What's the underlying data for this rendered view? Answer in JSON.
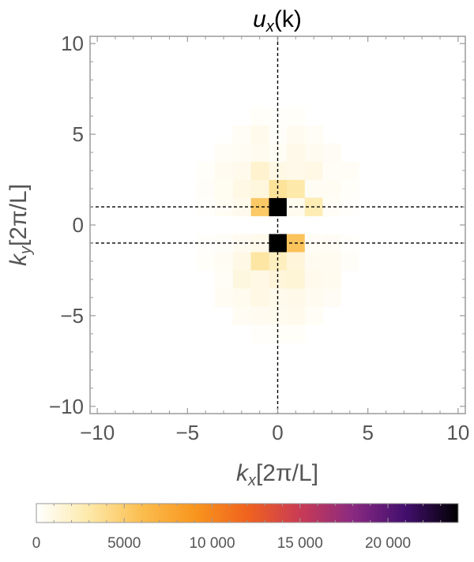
{
  "chart_data": {
    "type": "heatmap",
    "title_main": "u",
    "title_sub": "x",
    "title_tail": "(k)",
    "xlabel": {
      "main": "k",
      "sub": "x",
      "tail": "[2π/L]"
    },
    "ylabel": {
      "main": "k",
      "sub": "y",
      "tail": "[2π/L]"
    },
    "xlim": [
      -10.4,
      10.4
    ],
    "ylim": [
      -10.4,
      10.4
    ],
    "xticks": [
      -10,
      -5,
      0,
      5,
      10
    ],
    "yticks": [
      -10,
      -5,
      0,
      5,
      10
    ],
    "xtick_labels": [
      "−10",
      "−5",
      "0",
      "5",
      "10"
    ],
    "ytick_labels": [
      "−10",
      "−5",
      "0",
      "5",
      "10"
    ],
    "reference_lines": {
      "vertical_x": [
        0
      ],
      "horizontal_y": [
        1,
        -1
      ],
      "style": "dashed"
    },
    "colorbar": {
      "min": 0,
      "max": 24000,
      "ticks": [
        0,
        5000,
        10000,
        15000,
        20000
      ],
      "tick_labels": [
        "0",
        "5000",
        "10 000",
        "15 000",
        "20 000"
      ],
      "colormap": [
        "#ffffff",
        "#fde9a9",
        "#fbbd4f",
        "#f8961e",
        "#f0631e",
        "#c93b55",
        "#8a2a81",
        "#420f6e",
        "#000000"
      ]
    },
    "cells": [
      {
        "kx": 0,
        "ky": 1,
        "value": 24000
      },
      {
        "kx": 0,
        "ky": -1,
        "value": 24000
      },
      {
        "kx": -1,
        "ky": 1,
        "value": 5200
      },
      {
        "kx": 1,
        "ky": -1,
        "value": 5600
      },
      {
        "kx": 1,
        "ky": 1,
        "value": 600
      },
      {
        "kx": -1,
        "ky": -1,
        "value": 700
      },
      {
        "kx": 0,
        "ky": 2,
        "value": 3500
      },
      {
        "kx": 1,
        "ky": 2,
        "value": 3000
      },
      {
        "kx": -1,
        "ky": 2,
        "value": 1200
      },
      {
        "kx": 2,
        "ky": 2,
        "value": 400
      },
      {
        "kx": -2,
        "ky": 2,
        "value": 900
      },
      {
        "kx": 0,
        "ky": -2,
        "value": 2200
      },
      {
        "kx": -1,
        "ky": -2,
        "value": 3200
      },
      {
        "kx": 1,
        "ky": -2,
        "value": 1300
      },
      {
        "kx": 2,
        "ky": -2,
        "value": 500
      },
      {
        "kx": -2,
        "ky": -2,
        "value": 900
      },
      {
        "kx": 2,
        "ky": 1,
        "value": 2600
      },
      {
        "kx": -2,
        "ky": 1,
        "value": 700
      },
      {
        "kx": 2,
        "ky": -1,
        "value": 300
      },
      {
        "kx": -2,
        "ky": -1,
        "value": 500
      },
      {
        "kx": 3,
        "ky": 1,
        "value": 300
      },
      {
        "kx": -3,
        "ky": 1,
        "value": 400
      },
      {
        "kx": 3,
        "ky": -1,
        "value": 350
      },
      {
        "kx": -3,
        "ky": -1,
        "value": 250
      },
      {
        "kx": 0,
        "ky": 3,
        "value": 900
      },
      {
        "kx": -1,
        "ky": 3,
        "value": 1700
      },
      {
        "kx": 1,
        "ky": 3,
        "value": 800
      },
      {
        "kx": 2,
        "ky": 3,
        "value": 900
      },
      {
        "kx": -2,
        "ky": 3,
        "value": 700
      },
      {
        "kx": 3,
        "ky": 3,
        "value": 300
      },
      {
        "kx": -3,
        "ky": 3,
        "value": 500
      },
      {
        "kx": 4,
        "ky": 3,
        "value": 300
      },
      {
        "kx": -4,
        "ky": 3,
        "value": 200
      },
      {
        "kx": 0,
        "ky": -3,
        "value": 1300
      },
      {
        "kx": -1,
        "ky": -3,
        "value": 900
      },
      {
        "kx": 1,
        "ky": -3,
        "value": 1400
      },
      {
        "kx": 2,
        "ky": -3,
        "value": 700
      },
      {
        "kx": -2,
        "ky": -3,
        "value": 1100
      },
      {
        "kx": 3,
        "ky": -3,
        "value": 600
      },
      {
        "kx": -3,
        "ky": -3,
        "value": 300
      },
      {
        "kx": 3,
        "ky": 2,
        "value": 400
      },
      {
        "kx": -3,
        "ky": 2,
        "value": 450
      },
      {
        "kx": 3,
        "ky": -2,
        "value": 500
      },
      {
        "kx": -3,
        "ky": -2,
        "value": 400
      },
      {
        "kx": 4,
        "ky": 2,
        "value": 200
      },
      {
        "kx": -4,
        "ky": 2,
        "value": 250
      },
      {
        "kx": 4,
        "ky": -2,
        "value": 250
      },
      {
        "kx": -4,
        "ky": -2,
        "value": 200
      },
      {
        "kx": 0,
        "ky": 4,
        "value": 300
      },
      {
        "kx": -1,
        "ky": 4,
        "value": 600
      },
      {
        "kx": 1,
        "ky": 4,
        "value": 800
      },
      {
        "kx": 2,
        "ky": 4,
        "value": 500
      },
      {
        "kx": -2,
        "ky": 4,
        "value": 400
      },
      {
        "kx": 3,
        "ky": 4,
        "value": 350
      },
      {
        "kx": -3,
        "ky": 4,
        "value": 300
      },
      {
        "kx": 0,
        "ky": -4,
        "value": 700
      },
      {
        "kx": -1,
        "ky": -4,
        "value": 900
      },
      {
        "kx": 1,
        "ky": -4,
        "value": 800
      },
      {
        "kx": 2,
        "ky": -4,
        "value": 500
      },
      {
        "kx": -2,
        "ky": -4,
        "value": 600
      },
      {
        "kx": 3,
        "ky": -4,
        "value": 350
      },
      {
        "kx": -3,
        "ky": -4,
        "value": 400
      },
      {
        "kx": 0,
        "ky": 5,
        "value": 200
      },
      {
        "kx": -1,
        "ky": 5,
        "value": 700
      },
      {
        "kx": 1,
        "ky": 5,
        "value": 500
      },
      {
        "kx": 2,
        "ky": 5,
        "value": 300
      },
      {
        "kx": -2,
        "ky": 5,
        "value": 300
      },
      {
        "kx": 0,
        "ky": -5,
        "value": 600
      },
      {
        "kx": -1,
        "ky": -5,
        "value": 500
      },
      {
        "kx": 1,
        "ky": -5,
        "value": 700
      },
      {
        "kx": 2,
        "ky": -5,
        "value": 300
      },
      {
        "kx": -2,
        "ky": -5,
        "value": 400
      },
      {
        "kx": 0,
        "ky": 6,
        "value": 150
      },
      {
        "kx": -1,
        "ky": 6,
        "value": 200
      },
      {
        "kx": 1,
        "ky": 6,
        "value": 200
      },
      {
        "kx": 0,
        "ky": -6,
        "value": 200
      },
      {
        "kx": -1,
        "ky": -6,
        "value": 150
      },
      {
        "kx": 1,
        "ky": -6,
        "value": 200
      },
      {
        "kx": 4,
        "ky": 1,
        "value": 150
      },
      {
        "kx": -4,
        "ky": 1,
        "value": 150
      },
      {
        "kx": 4,
        "ky": -1,
        "value": 150
      },
      {
        "kx": -4,
        "ky": -1,
        "value": 150
      }
    ]
  }
}
